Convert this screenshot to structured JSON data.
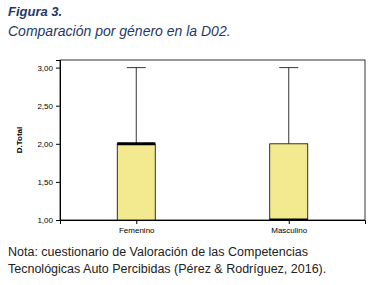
{
  "chart_data": {
    "type": "box",
    "title": "Figura 3.",
    "subtitle": "Comparación por género en la D02.",
    "ylabel": "D.Total",
    "categories": [
      "Femenino",
      "Masculino"
    ],
    "min": [
      1,
      1
    ],
    "q1": [
      1,
      1
    ],
    "median": [
      2,
      1
    ],
    "q3": [
      2,
      2
    ],
    "max": [
      3,
      3
    ],
    "color": "#f3ea8f",
    "ylim": [
      1,
      3.1
    ],
    "yticks": [
      {
        "value": 1,
        "label": "1,00"
      },
      {
        "value": 1.5,
        "label": "1,50"
      },
      {
        "value": 2,
        "label": "2,00"
      },
      {
        "value": 2.5,
        "label": "2,50"
      },
      {
        "value": 3,
        "label": "3,00"
      }
    ],
    "grid": false,
    "note": [
      "Nota: cuestionario de Valoración de las Competencias",
      "Tecnológicas Auto Percibidas (Pérez & Rodríguez, 2016)."
    ]
  }
}
